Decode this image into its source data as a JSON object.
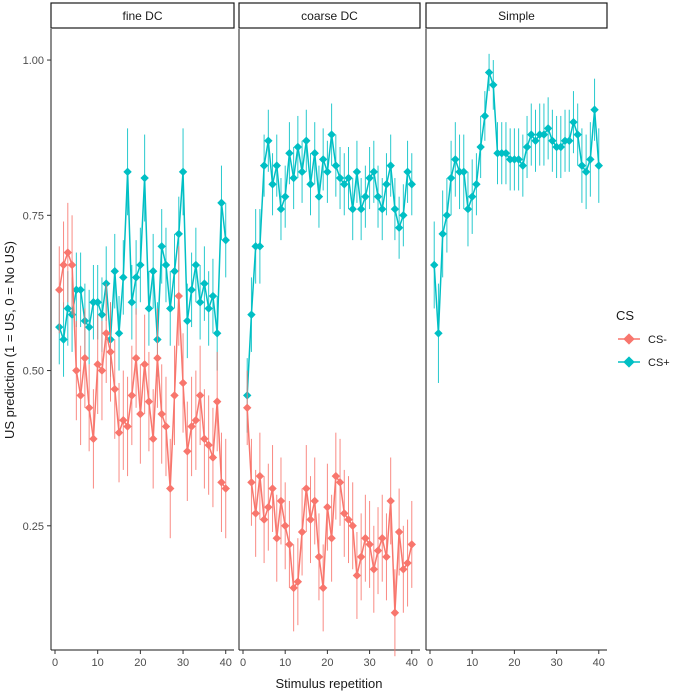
{
  "chart_data": {
    "type": "line",
    "facets": [
      "fine DC",
      "coarse DC",
      "Simple"
    ],
    "xlabel": "Stimulus repetition",
    "ylabel": "US prediction (1 = US, 0 = No US)",
    "xlim": [
      0,
      41
    ],
    "xticks": [
      0,
      10,
      20,
      30,
      40
    ],
    "xtick_labels": [
      "0",
      "10",
      "20",
      "30",
      "40"
    ],
    "ylim": [
      0.05,
      1.05
    ],
    "yticks": [
      0.25,
      0.5,
      0.75,
      1.0
    ],
    "ytick_labels": [
      "0.25",
      "0.50",
      "0.75",
      "1.00"
    ],
    "grid": false,
    "legend": {
      "title": "CS",
      "position": "right",
      "entries": [
        "CS-",
        "CS+"
      ]
    },
    "series_colors": {
      "CS-": "#F8766D",
      "CS+": "#00BFC4"
    },
    "panels": [
      {
        "facet": "fine DC",
        "series": [
          {
            "name": "CS+",
            "x": [
              1,
              2,
              3,
              4,
              5,
              6,
              7,
              8,
              9,
              10,
              11,
              12,
              13,
              14,
              15,
              16,
              17,
              18,
              19,
              20,
              21,
              22,
              23,
              24,
              25,
              26,
              27,
              28,
              29,
              30,
              31,
              32,
              33,
              34,
              35,
              36,
              37,
              38,
              39,
              40
            ],
            "y": [
              0.57,
              0.55,
              0.6,
              0.59,
              0.63,
              0.63,
              0.58,
              0.57,
              0.61,
              0.61,
              0.59,
              0.64,
              0.55,
              0.66,
              0.56,
              0.65,
              0.82,
              0.61,
              0.65,
              0.67,
              0.81,
              0.6,
              0.66,
              0.55,
              0.7,
              0.67,
              0.6,
              0.66,
              0.72,
              0.82,
              0.58,
              0.63,
              0.67,
              0.61,
              0.64,
              0.6,
              0.62,
              0.56,
              0.77,
              0.71
            ],
            "err": [
              0.06,
              0.06,
              0.06,
              0.06,
              0.06,
              0.06,
              0.06,
              0.06,
              0.06,
              0.06,
              0.06,
              0.06,
              0.06,
              0.06,
              0.06,
              0.06,
              0.07,
              0.06,
              0.06,
              0.06,
              0.07,
              0.06,
              0.06,
              0.06,
              0.06,
              0.06,
              0.06,
              0.06,
              0.06,
              0.07,
              0.06,
              0.06,
              0.06,
              0.06,
              0.06,
              0.06,
              0.06,
              0.06,
              0.06,
              0.06
            ]
          },
          {
            "name": "CS-",
            "x": [
              1,
              2,
              3,
              4,
              5,
              6,
              7,
              8,
              9,
              10,
              11,
              12,
              13,
              14,
              15,
              16,
              17,
              18,
              19,
              20,
              21,
              22,
              23,
              24,
              25,
              26,
              27,
              28,
              29,
              30,
              31,
              32,
              33,
              34,
              35,
              36,
              37,
              38,
              39,
              40
            ],
            "y": [
              0.63,
              0.67,
              0.69,
              0.67,
              0.5,
              0.46,
              0.52,
              0.44,
              0.39,
              0.51,
              0.5,
              0.56,
              0.53,
              0.47,
              0.4,
              0.42,
              0.41,
              0.46,
              0.52,
              0.43,
              0.51,
              0.45,
              0.39,
              0.52,
              0.43,
              0.41,
              0.31,
              0.46,
              0.62,
              0.48,
              0.37,
              0.41,
              0.42,
              0.46,
              0.39,
              0.38,
              0.36,
              0.45,
              0.32,
              0.31
            ],
            "err": [
              0.07,
              0.07,
              0.08,
              0.08,
              0.08,
              0.08,
              0.08,
              0.07,
              0.08,
              0.08,
              0.08,
              0.08,
              0.08,
              0.08,
              0.08,
              0.08,
              0.08,
              0.08,
              0.08,
              0.08,
              0.08,
              0.08,
              0.08,
              0.08,
              0.08,
              0.08,
              0.08,
              0.08,
              0.08,
              0.08,
              0.08,
              0.08,
              0.08,
              0.08,
              0.08,
              0.08,
              0.08,
              0.08,
              0.08,
              0.08
            ]
          }
        ]
      },
      {
        "facet": "coarse DC",
        "series": [
          {
            "name": "CS+",
            "x": [
              1,
              2,
              3,
              4,
              5,
              6,
              7,
              8,
              9,
              10,
              11,
              12,
              13,
              14,
              15,
              16,
              17,
              18,
              19,
              20,
              21,
              22,
              23,
              24,
              25,
              26,
              27,
              28,
              29,
              30,
              31,
              32,
              33,
              34,
              35,
              36,
              37,
              38,
              39,
              40
            ],
            "y": [
              0.46,
              0.59,
              0.7,
              0.7,
              0.83,
              0.87,
              0.8,
              0.83,
              0.76,
              0.78,
              0.85,
              0.81,
              0.86,
              0.82,
              0.87,
              0.8,
              0.85,
              0.78,
              0.84,
              0.82,
              0.88,
              0.83,
              0.81,
              0.8,
              0.81,
              0.76,
              0.82,
              0.76,
              0.78,
              0.81,
              0.82,
              0.78,
              0.76,
              0.8,
              0.83,
              0.76,
              0.73,
              0.75,
              0.82,
              0.8
            ],
            "err": [
              0.06,
              0.06,
              0.06,
              0.06,
              0.05,
              0.05,
              0.05,
              0.05,
              0.05,
              0.05,
              0.05,
              0.05,
              0.05,
              0.05,
              0.05,
              0.05,
              0.05,
              0.05,
              0.05,
              0.05,
              0.05,
              0.05,
              0.05,
              0.05,
              0.05,
              0.05,
              0.05,
              0.05,
              0.05,
              0.05,
              0.05,
              0.05,
              0.05,
              0.05,
              0.05,
              0.05,
              0.05,
              0.05,
              0.05,
              0.05
            ]
          },
          {
            "name": "CS-",
            "x": [
              1,
              2,
              3,
              4,
              5,
              6,
              7,
              8,
              9,
              10,
              11,
              12,
              13,
              14,
              15,
              16,
              17,
              18,
              19,
              20,
              21,
              22,
              23,
              24,
              25,
              26,
              27,
              28,
              29,
              30,
              31,
              32,
              33,
              34,
              35,
              36,
              37,
              38,
              39,
              40
            ],
            "y": [
              0.44,
              0.32,
              0.27,
              0.33,
              0.26,
              0.28,
              0.31,
              0.23,
              0.29,
              0.25,
              0.22,
              0.15,
              0.16,
              0.24,
              0.31,
              0.26,
              0.29,
              0.2,
              0.15,
              0.28,
              0.23,
              0.33,
              0.32,
              0.27,
              0.26,
              0.25,
              0.17,
              0.2,
              0.23,
              0.22,
              0.18,
              0.21,
              0.23,
              0.2,
              0.29,
              0.11,
              0.24,
              0.18,
              0.19,
              0.22
            ],
            "err": [
              0.06,
              0.07,
              0.07,
              0.07,
              0.07,
              0.07,
              0.07,
              0.07,
              0.07,
              0.07,
              0.07,
              0.07,
              0.07,
              0.07,
              0.07,
              0.07,
              0.07,
              0.07,
              0.07,
              0.07,
              0.07,
              0.07,
              0.07,
              0.07,
              0.07,
              0.07,
              0.07,
              0.07,
              0.07,
              0.07,
              0.07,
              0.07,
              0.07,
              0.07,
              0.07,
              0.07,
              0.07,
              0.07,
              0.07,
              0.07
            ]
          }
        ]
      },
      {
        "facet": "Simple",
        "series": [
          {
            "name": "CS+",
            "x": [
              1,
              2,
              3,
              4,
              5,
              6,
              7,
              8,
              9,
              10,
              11,
              12,
              13,
              14,
              15,
              16,
              17,
              18,
              19,
              20,
              21,
              22,
              23,
              24,
              25,
              26,
              27,
              28,
              29,
              30,
              31,
              32,
              33,
              34,
              35,
              36,
              37,
              38,
              39,
              40
            ],
            "y": [
              0.67,
              0.56,
              0.72,
              0.75,
              0.81,
              0.84,
              0.82,
              0.82,
              0.76,
              0.78,
              0.8,
              0.86,
              0.91,
              0.98,
              0.96,
              0.85,
              0.85,
              0.85,
              0.84,
              0.84,
              0.84,
              0.83,
              0.86,
              0.88,
              0.87,
              0.88,
              0.88,
              0.89,
              0.87,
              0.86,
              0.86,
              0.87,
              0.87,
              0.9,
              0.88,
              0.83,
              0.82,
              0.84,
              0.92,
              0.83
            ],
            "err": [
              0.07,
              0.08,
              0.07,
              0.06,
              0.06,
              0.06,
              0.06,
              0.06,
              0.06,
              0.06,
              0.05,
              0.05,
              0.04,
              0.03,
              0.04,
              0.05,
              0.05,
              0.05,
              0.05,
              0.05,
              0.05,
              0.05,
              0.05,
              0.05,
              0.05,
              0.05,
              0.05,
              0.05,
              0.05,
              0.05,
              0.05,
              0.05,
              0.05,
              0.05,
              0.05,
              0.06,
              0.06,
              0.06,
              0.05,
              0.06
            ]
          }
        ]
      }
    ]
  }
}
